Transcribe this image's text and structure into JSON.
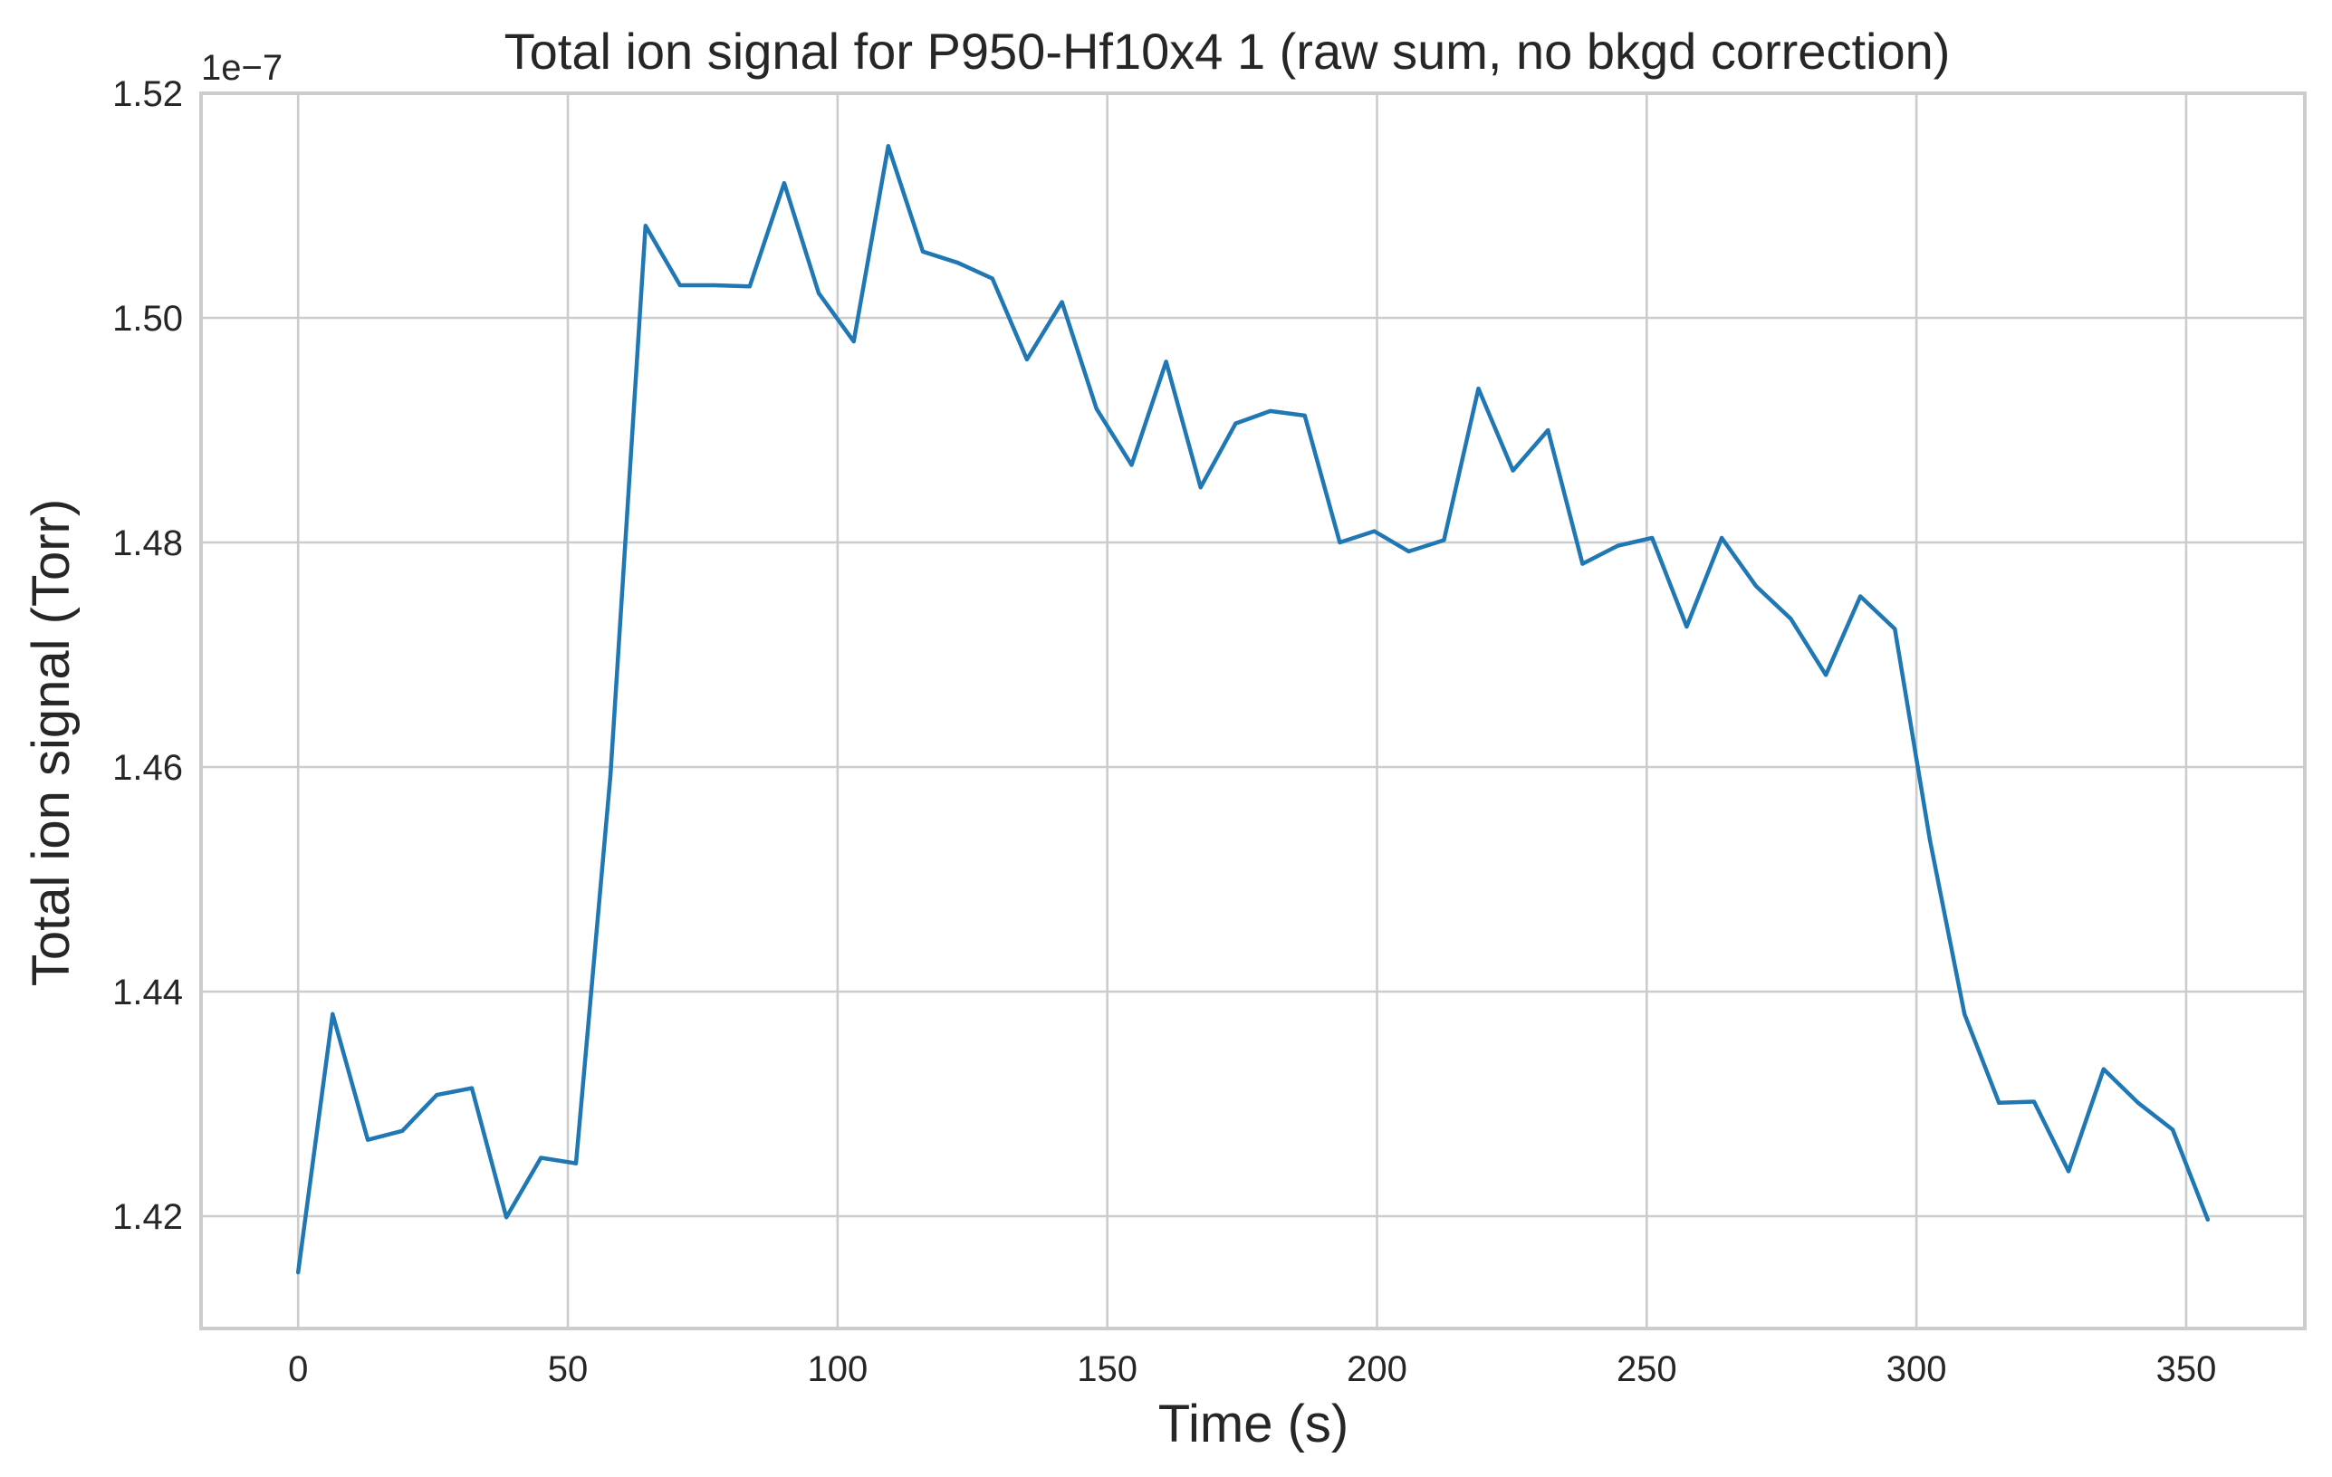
{
  "chart_data": {
    "type": "line",
    "title": "Total ion signal for P950-Hf10x4 1 (raw sum, no bkgd correction)",
    "xlabel": "Time (s)",
    "ylabel": "Total ion signal (Torr)",
    "y_offset_label": "1e−7",
    "xlim": [
      -18,
      372
    ],
    "ylim": [
      1.41,
      1.52
    ],
    "x_ticks": [
      0,
      50,
      100,
      150,
      200,
      250,
      300,
      350
    ],
    "x_tick_labels": [
      "0",
      "50",
      "100",
      "150",
      "200",
      "250",
      "300",
      "350"
    ],
    "y_ticks": [
      1.42,
      1.44,
      1.46,
      1.48,
      1.5,
      1.52
    ],
    "y_tick_labels": [
      "1.42",
      "1.44",
      "1.46",
      "1.48",
      "1.50",
      "1.52"
    ],
    "grid": true,
    "series": [
      {
        "color": "#1f77b4",
        "x": [
          0,
          6.4,
          12.9,
          19.3,
          25.7,
          32.2,
          38.6,
          45.0,
          51.5,
          57.9,
          64.4,
          70.8,
          77.2,
          83.7,
          90.1,
          96.5,
          103.0,
          109.4,
          115.8,
          122.3,
          128.7,
          135.1,
          141.6,
          148.0,
          154.5,
          160.9,
          167.3,
          173.8,
          180.2,
          186.6,
          193.1,
          199.5,
          205.9,
          212.4,
          218.8,
          225.2,
          231.7,
          238.1,
          244.6,
          251.0,
          257.4,
          263.9,
          270.3,
          276.7,
          283.2,
          289.6,
          296.0,
          302.5,
          308.9,
          315.3,
          321.8,
          328.2,
          334.7,
          341.1,
          347.5,
          354.0
        ],
        "y": [
          1.415,
          1.438,
          1.4268,
          1.4276,
          1.4308,
          1.4314,
          1.4199,
          1.4252,
          1.4247,
          1.4593,
          1.5082,
          1.5029,
          1.5029,
          1.5028,
          1.512,
          1.5022,
          1.4979,
          1.5153,
          1.5059,
          1.5049,
          1.5035,
          1.4963,
          1.5014,
          1.4919,
          1.4869,
          1.4961,
          1.4849,
          1.4906,
          1.4917,
          1.4913,
          1.48,
          1.481,
          1.4792,
          1.4802,
          1.4937,
          1.4864,
          1.49,
          1.4781,
          1.4797,
          1.4804,
          1.4725,
          1.4804,
          1.4761,
          1.4732,
          1.4682,
          1.4752,
          1.4723,
          1.4535,
          1.438,
          1.4301,
          1.4302,
          1.424,
          1.4331,
          1.4301,
          1.4277,
          1.4197
        ]
      }
    ]
  }
}
